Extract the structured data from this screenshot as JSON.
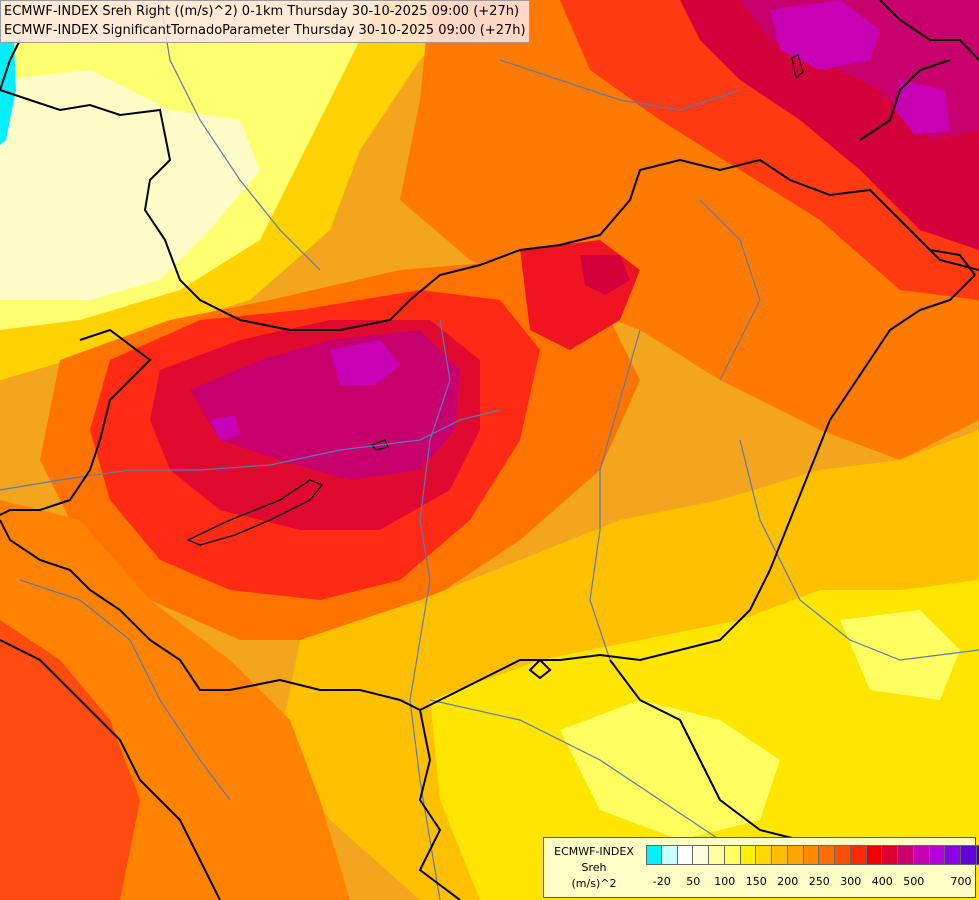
{
  "header": {
    "line1": "ECMWF-INDEX Sreh Right ((m/s)^2) 0-1km Thursday 30-10-2025 09:00 (+27h)",
    "line2": "ECMWF-INDEX SignificantTornadoParameter Thursday 30-10-2025 09:00 (+27h)"
  },
  "legend": {
    "title1": "ECMWF-INDEX",
    "title2": "Sreh",
    "title3": "(m/s)^2",
    "colors": [
      "#00f0ff",
      "#c8ffff",
      "#ffffff",
      "#ffffe0",
      "#ffffa0",
      "#ffff60",
      "#fff000",
      "#ffd700",
      "#ffbe00",
      "#ffa500",
      "#ff8c00",
      "#ff6e00",
      "#ff5000",
      "#ff2800",
      "#f00000",
      "#dc0032",
      "#c8006e",
      "#c800b4",
      "#b400dc",
      "#8c00e6",
      "#6400dc",
      "#3c00b4",
      "#140096"
    ],
    "ticks": [
      "-20",
      "50",
      "100",
      "150",
      "200",
      "250",
      "300",
      "400",
      "500",
      "700"
    ],
    "tick_colors": [
      1,
      3,
      5,
      7,
      9,
      11,
      13,
      15,
      17,
      20
    ]
  },
  "map": {
    "colors": {
      "background": "#f4a51e",
      "pale": "#fffcc8",
      "light_yellow": "#ffff80",
      "yellow": "#ffe600",
      "gold": "#ffc800",
      "orange": "#ff9a00",
      "dark_orange": "#ff6e00",
      "red_orange": "#ff4a10",
      "red": "#f01423",
      "crimson": "#d4003c",
      "magenta": "#c8006e",
      "purple": "#c800b4",
      "cyan": "#00f0ff",
      "border": "#000000",
      "river": "#5a7ab4"
    }
  }
}
